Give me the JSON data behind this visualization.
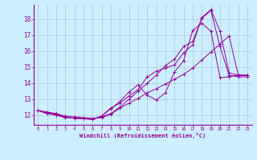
{
  "xlabel": "Windchill (Refroidissement éolien,°C)",
  "background_color": "#cceeff",
  "grid_color": "#aacccc",
  "line_color": "#990099",
  "x_ticks": [
    0,
    1,
    2,
    3,
    4,
    5,
    6,
    7,
    8,
    9,
    10,
    11,
    12,
    13,
    14,
    15,
    16,
    17,
    18,
    19,
    20,
    21,
    22,
    23
  ],
  "y_ticks": [
    12,
    13,
    14,
    15,
    16,
    17,
    18
  ],
  "xlim": [
    -0.5,
    23.5
  ],
  "ylim": [
    11.4,
    18.9
  ],
  "series": [
    [
      12.3,
      12.1,
      12.1,
      11.85,
      11.82,
      11.78,
      11.75,
      11.9,
      12.1,
      12.5,
      13.0,
      13.5,
      14.0,
      14.5,
      15.1,
      15.5,
      16.3,
      16.6,
      18.05,
      18.55,
      16.3,
      14.5,
      14.4,
      14.4
    ],
    [
      12.3,
      12.15,
      12.05,
      11.85,
      11.82,
      11.78,
      11.75,
      11.95,
      12.45,
      12.75,
      13.2,
      13.6,
      14.4,
      14.75,
      14.95,
      15.15,
      15.9,
      16.4,
      18.1,
      18.6,
      17.25,
      14.65,
      14.5,
      14.5
    ],
    [
      12.3,
      12.1,
      12.0,
      11.85,
      11.82,
      11.78,
      11.75,
      11.95,
      12.4,
      12.85,
      13.45,
      13.9,
      13.25,
      12.95,
      13.4,
      14.7,
      15.4,
      17.3,
      17.75,
      17.25,
      14.35,
      14.4,
      14.5,
      14.5
    ],
    [
      12.3,
      12.2,
      12.1,
      11.95,
      11.9,
      11.85,
      11.8,
      11.85,
      12.05,
      12.45,
      12.75,
      13.05,
      13.4,
      13.65,
      13.95,
      14.25,
      14.55,
      14.95,
      15.45,
      15.95,
      16.45,
      16.95,
      14.5,
      14.5
    ]
  ]
}
